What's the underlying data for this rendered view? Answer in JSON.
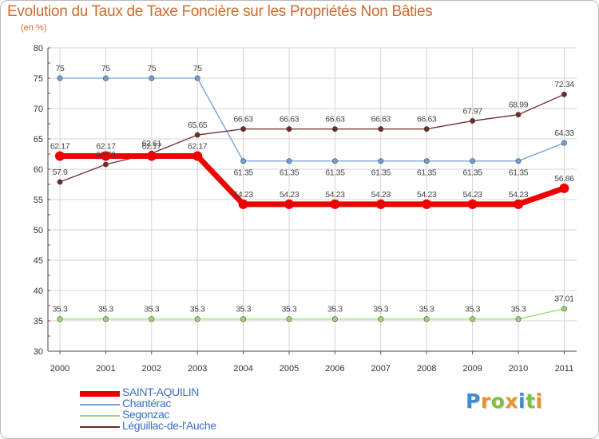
{
  "title": "Evolution du Taux de Taxe Foncière sur les Propriétés Non Bâties",
  "subtitle": "(en %)",
  "logo": {
    "letters": [
      "P",
      "r",
      "o",
      "x",
      "i",
      "t",
      "i"
    ],
    "colors": [
      "#3e8dd3",
      "#e8932a",
      "#7fbf3f",
      "#e8932a",
      "#3e8dd3",
      "#7fbf3f",
      "#e8932a"
    ]
  },
  "chart_data": {
    "type": "line",
    "title": "Evolution du Taux de Taxe Foncière sur les Propriétés Non Bâties",
    "ylabel": "(en %)",
    "categories": [
      "2000",
      "2001",
      "2002",
      "2003",
      "2004",
      "2005",
      "2006",
      "2007",
      "2008",
      "2009",
      "2010",
      "2011"
    ],
    "ylim": [
      30,
      80
    ],
    "yticks": [
      30,
      35,
      40,
      45,
      50,
      55,
      60,
      65,
      70,
      75,
      80
    ],
    "grid": true,
    "series": [
      {
        "name": "SAINT-AQUILIN",
        "color": "#ee0000",
        "values": [
          62.17,
          62.17,
          62.17,
          62.17,
          54.23,
          54.23,
          54.23,
          54.23,
          54.23,
          54.23,
          54.23,
          56.86
        ],
        "labels": [
          "62.17",
          "62.17",
          "62.17",
          "62.17",
          "54.23",
          "54.23",
          "54.23",
          "54.23",
          "54.23",
          "54.23",
          "54.23",
          "56.86"
        ]
      },
      {
        "name": "Chantérac",
        "color": "#6f9fd2",
        "values": [
          75,
          75,
          75,
          75,
          61.35,
          61.35,
          61.35,
          61.35,
          61.35,
          61.35,
          61.35,
          64.33
        ],
        "labels": [
          "75",
          "75",
          "75",
          "75",
          "61.35",
          "61.35",
          "61.35",
          "61.35",
          "61.35",
          "61.35",
          "61.35",
          "64.33"
        ]
      },
      {
        "name": "Segonzac",
        "color": "#9cd46c",
        "values": [
          35.3,
          35.3,
          35.3,
          35.3,
          35.3,
          35.3,
          35.3,
          35.3,
          35.3,
          35.3,
          35.3,
          37.01
        ],
        "labels": [
          "35.3",
          "35.3",
          "35.3",
          "35.3",
          "35.3",
          "35.3",
          "35.3",
          "35.3",
          "35.3",
          "35.3",
          "35.3",
          "37.01"
        ]
      },
      {
        "name": "Léguillac-de-l'Auche",
        "color": "#6e2a2a",
        "values": [
          57.9,
          60.79,
          62.61,
          65.65,
          66.63,
          66.63,
          66.63,
          66.63,
          66.63,
          67.97,
          68.99,
          72.34
        ],
        "labels": [
          "57.9",
          "60.79",
          "62.61",
          "65.65",
          "66.63",
          "66.63",
          "66.63",
          "66.63",
          "66.63",
          "67.97",
          "68.99",
          "72.34"
        ]
      }
    ]
  }
}
